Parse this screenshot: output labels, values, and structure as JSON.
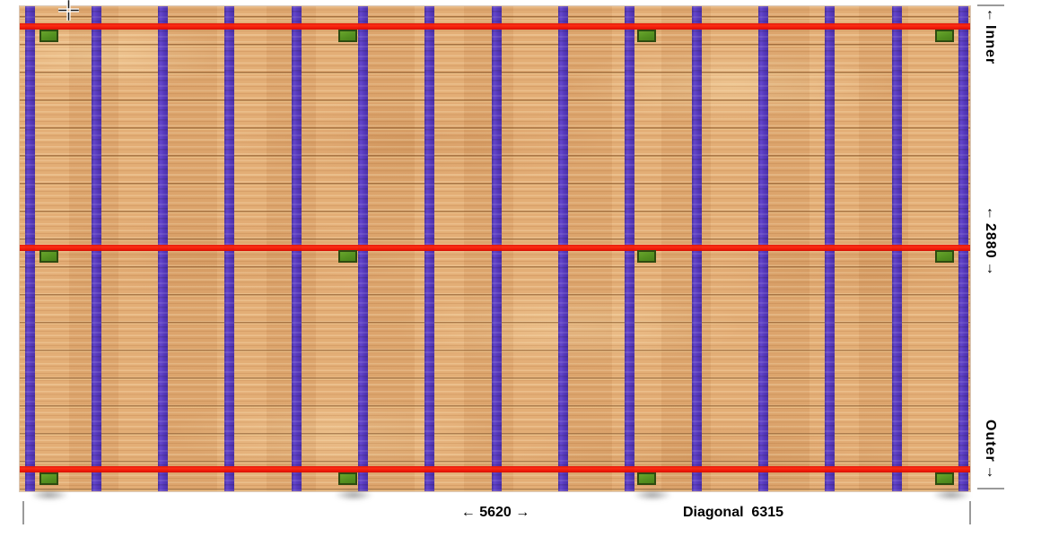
{
  "app": {
    "view": "deck-framing-plan"
  },
  "labels": {
    "inner": {
      "arrow_up": "↑",
      "text": "Inner"
    },
    "bearer_span": {
      "arrow_up": "↑",
      "text": "2880",
      "arrow_down": "↓"
    },
    "outer": {
      "text": "Outer",
      "arrow_down": "↓"
    },
    "width": "← 5620 →",
    "diagonal": "Diagonal  6315"
  },
  "structure": {
    "joists": {
      "count": 15,
      "width": 11,
      "first_center": 11,
      "spacing": 74.32
    },
    "bearers": {
      "height": 7,
      "tops": [
        19,
        266,
        513
      ]
    },
    "posts": {
      "width": 21,
      "height": 14,
      "col_lefts": [
        22,
        355,
        688,
        1020
      ],
      "row_tops": [
        26,
        272,
        520
      ]
    },
    "shadows": {
      "lefts": [
        32,
        371,
        704,
        1037
      ]
    }
  },
  "colors": {
    "wood-base": "#e2aa72",
    "joist": "#4c31c2",
    "bearer": "#ef1205",
    "post-fill": "#549120",
    "post-border": "#2d4b10",
    "tick": "#9a9a9a",
    "text": "#000000"
  }
}
